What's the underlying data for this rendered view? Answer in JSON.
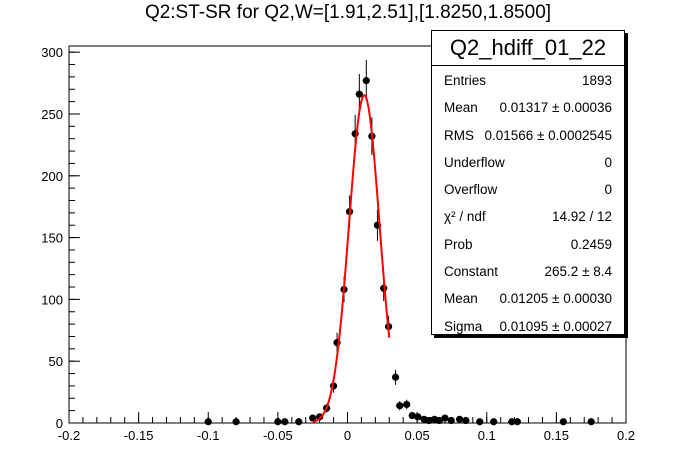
{
  "title": "Q2:ST-SR for Q2,W=[1.91,2.51],[1.8250,1.8500]",
  "stats": {
    "name": "Q2_hdiff_01_22",
    "rows": [
      {
        "label": "Entries",
        "value": "1893"
      },
      {
        "label": "Mean",
        "value": "0.01317 ± 0.00036"
      },
      {
        "label": "RMS",
        "value": "0.01566 ± 0.0002545"
      },
      {
        "label": "Underflow",
        "value": "0"
      },
      {
        "label": "Overflow",
        "value": "0"
      },
      {
        "label": "χ² / ndf",
        "value": "14.92 / 12"
      },
      {
        "label": "Prob",
        "value": "0.2459"
      },
      {
        "label": "Constant",
        "value": "265.2 ± 8.4"
      },
      {
        "label": "Mean",
        "value": "0.01205 ± 0.00030"
      },
      {
        "label": "Sigma",
        "value": "0.01095 ± 0.00027"
      }
    ]
  },
  "colors": {
    "points": "#000000",
    "fit": "#ff0000",
    "axis": "#000000"
  },
  "chart_data": {
    "type": "scatter",
    "title": "Q2:ST-SR for Q2,W=[1.91,2.51],[1.8250,1.8500]",
    "xlabel": "",
    "ylabel": "",
    "xlim": [
      -0.2,
      0.2
    ],
    "ylim": [
      0,
      305
    ],
    "x_ticks": [
      "-0.2",
      "-0.15",
      "-0.1",
      "-0.05",
      "0",
      "0.05",
      "0.1",
      "0.15",
      "0.2"
    ],
    "y_ticks": [
      "0",
      "50",
      "100",
      "150",
      "200",
      "250",
      "300"
    ],
    "grid": false,
    "series": [
      {
        "values": [
          {
            "x": -0.1,
            "y": 1
          },
          {
            "x": -0.08,
            "y": 1
          },
          {
            "x": -0.05,
            "y": 1
          },
          {
            "x": -0.045,
            "y": 1
          },
          {
            "x": -0.035,
            "y": 1
          },
          {
            "x": -0.025,
            "y": 4
          },
          {
            "x": -0.02,
            "y": 5
          },
          {
            "x": -0.015,
            "y": 12
          },
          {
            "x": -0.01,
            "y": 30
          },
          {
            "x": -0.0075,
            "y": 65
          },
          {
            "x": -0.0025,
            "y": 108
          },
          {
            "x": 0.0015,
            "y": 171
          },
          {
            "x": 0.0055,
            "y": 234
          },
          {
            "x": 0.0085,
            "y": 266
          },
          {
            "x": 0.0135,
            "y": 277
          },
          {
            "x": 0.0175,
            "y": 232
          },
          {
            "x": 0.0215,
            "y": 160
          },
          {
            "x": 0.026,
            "y": 109
          },
          {
            "x": 0.0295,
            "y": 78
          },
          {
            "x": 0.0345,
            "y": 37
          },
          {
            "x": 0.0375,
            "y": 14
          },
          {
            "x": 0.0425,
            "y": 15
          },
          {
            "x": 0.0465,
            "y": 6
          },
          {
            "x": 0.0505,
            "y": 5
          },
          {
            "x": 0.055,
            "y": 3
          },
          {
            "x": 0.0585,
            "y": 2
          },
          {
            "x": 0.0625,
            "y": 3
          },
          {
            "x": 0.066,
            "y": 2
          },
          {
            "x": 0.07,
            "y": 4
          },
          {
            "x": 0.0745,
            "y": 2
          },
          {
            "x": 0.0805,
            "y": 3
          },
          {
            "x": 0.085,
            "y": 2
          },
          {
            "x": 0.095,
            "y": 1
          },
          {
            "x": 0.105,
            "y": 1
          },
          {
            "x": 0.118,
            "y": 1
          },
          {
            "x": 0.122,
            "y": 1
          },
          {
            "x": 0.155,
            "y": 1
          },
          {
            "x": 0.175,
            "y": 1
          }
        ]
      }
    ],
    "fit": {
      "type": "gaus",
      "constant": 265.2,
      "mean": 0.01205,
      "sigma": 0.01095,
      "x_range": [
        -0.025,
        0.03
      ]
    }
  }
}
